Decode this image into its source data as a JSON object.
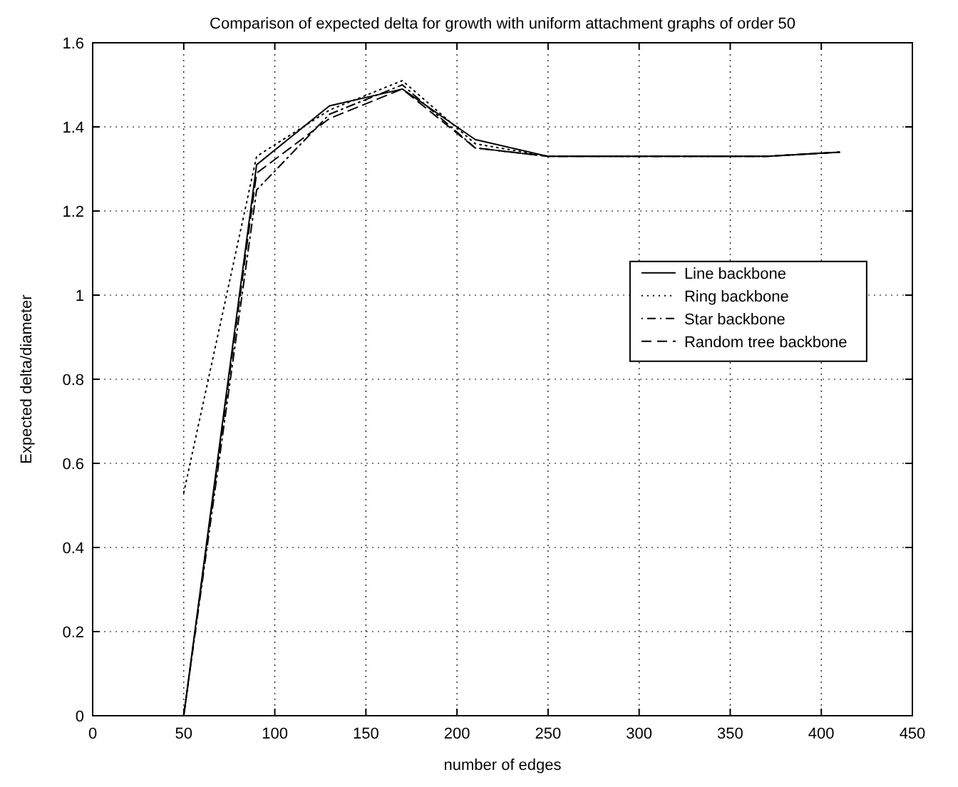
{
  "chart_data": {
    "type": "line",
    "title": "Comparison of expected delta for growth with uniform attachment graphs of order 50",
    "xlabel": "number of edges",
    "ylabel": "Expected delta/diameter",
    "x": [
      50,
      90,
      130,
      170,
      210,
      250,
      290,
      330,
      370,
      410
    ],
    "series": [
      {
        "name": "Line backbone",
        "color": "#000000",
        "line_style": "solid",
        "values": [
          0,
          1.31,
          1.45,
          1.49,
          1.37,
          1.33,
          1.33,
          1.33,
          1.33,
          1.34
        ]
      },
      {
        "name": "Ring backbone",
        "color": "#000000",
        "line_style": "dotted",
        "values": [
          0.53,
          1.33,
          1.44,
          1.51,
          1.36,
          1.33,
          1.33,
          1.33,
          1.33,
          1.34
        ]
      },
      {
        "name": "Star backbone",
        "color": "#000000",
        "line_style": "dashdot",
        "values": [
          0,
          1.25,
          1.43,
          1.5,
          1.35,
          1.33,
          1.33,
          1.33,
          1.33,
          1.34
        ]
      },
      {
        "name": "Random tree backbone",
        "color": "#000000",
        "line_style": "dashed",
        "values": [
          0,
          1.29,
          1.42,
          1.49,
          1.35,
          1.33,
          1.33,
          1.33,
          1.33,
          1.34
        ]
      }
    ],
    "xlim": [
      0,
      450
    ],
    "xticks": [
      0,
      50,
      100,
      150,
      200,
      250,
      300,
      350,
      400,
      450
    ],
    "ylim": [
      0,
      1.6
    ],
    "yticks": [
      0,
      0.2,
      0.4,
      0.6,
      0.8,
      1,
      1.2,
      1.4,
      1.6
    ],
    "grid": true,
    "legend": "right",
    "marker": "none"
  }
}
